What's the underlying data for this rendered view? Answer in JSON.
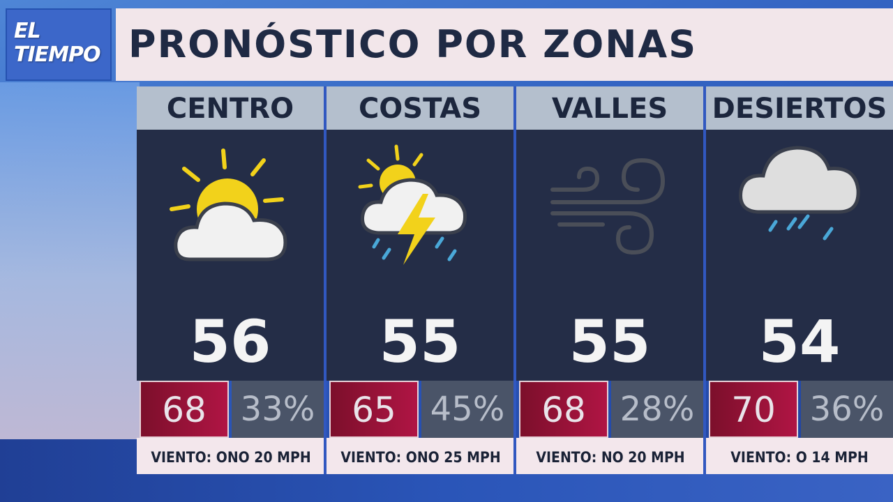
{
  "logo": {
    "line1": "EL",
    "line2": "TIEMPO"
  },
  "header": {
    "title": "PRONÓSTICO POR ZONAS"
  },
  "colors": {
    "hi_bg": "#b01544",
    "body_bg": "#242d47",
    "head_bg": "#b4bfcd"
  },
  "zones": [
    {
      "name": "CENTRO",
      "icon": "partly-cloudy-icon",
      "temp": "56",
      "high": "68",
      "precip": "33%",
      "wind": "VIENTO: ONO 20 MPH"
    },
    {
      "name": "COSTAS",
      "icon": "thunderstorm-sun-icon",
      "temp": "55",
      "high": "65",
      "precip": "45%",
      "wind": "VIENTO: ONO 25 MPH"
    },
    {
      "name": "VALLES",
      "icon": "wind-icon",
      "temp": "55",
      "high": "68",
      "precip": "28%",
      "wind": "VIENTO: NO 20 MPH"
    },
    {
      "name": "DESIERTOS",
      "icon": "rain-cloud-icon",
      "temp": "54",
      "high": "70",
      "precip": "36%",
      "wind": "VIENTO: O 14 MPH"
    }
  ]
}
